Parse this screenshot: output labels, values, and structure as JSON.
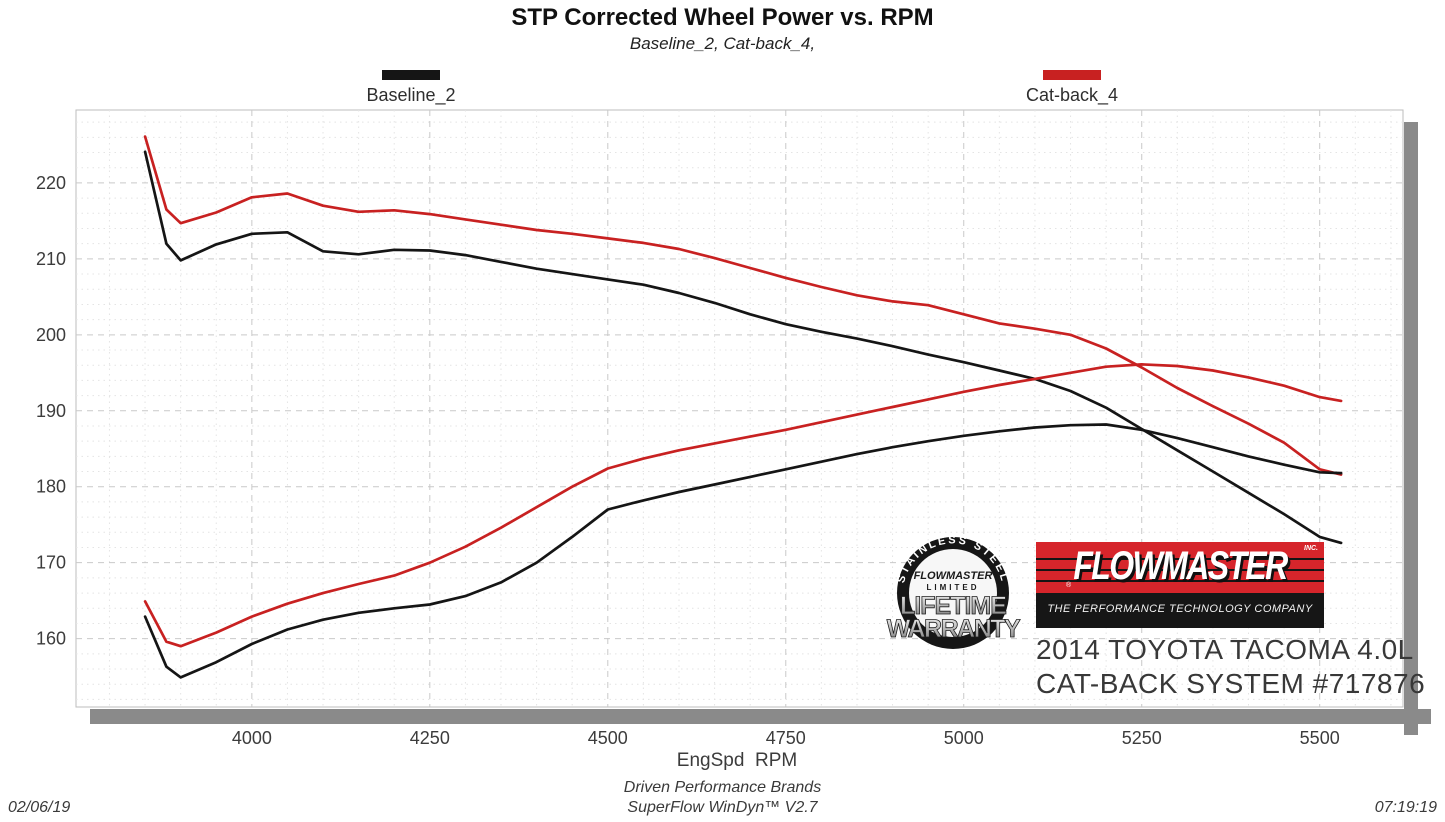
{
  "title": "STP Corrected Wheel Power vs. RPM",
  "subtitle": "Baseline_2, Cat-back_4,",
  "legend": [
    {
      "label": "Baseline_2",
      "color": "#151515"
    },
    {
      "label": "Cat-back_4",
      "color": "#c82121"
    }
  ],
  "xaxis_label": "EngSpd  RPM",
  "footer": {
    "date": "02/06/19",
    "time": "07:19:19",
    "line1": "Driven Performance Brands",
    "line2": "SuperFlow WinDyn™ V2.7"
  },
  "branding": {
    "badge_arc": "STAINLESS STEEL",
    "badge_brand": "FLOWMASTER",
    "badge_limited": "LIMITED",
    "badge_big1": "LIFETIME",
    "badge_big2": "WARRANTY",
    "logo_brand": "FLOWMASTER",
    "logo_inc": "INC.",
    "logo_reg": "®",
    "logo_tagline": "THE PERFORMANCE TECHNOLOGY COMPANY",
    "logo_red": "#d6252b",
    "vehicle_line1": "2014 TOYOTA TACOMA 4.0L",
    "vehicle_line2": "CAT-BACK SYSTEM #717876"
  },
  "chart_data": {
    "type": "line",
    "title": "STP Corrected Wheel Power vs. RPM",
    "xlabel": "EngSpd  RPM",
    "ylabel": "",
    "grid": true,
    "legend_position": "top",
    "xlim": [
      3753,
      5617
    ],
    "ylim": [
      151,
      229.6
    ],
    "x_ticks": [
      4000,
      4250,
      4500,
      4750,
      5000,
      5250,
      5500
    ],
    "y_ticks": [
      160,
      170,
      180,
      190,
      200,
      210,
      220
    ],
    "minor_x_step": 50,
    "minor_y_step": 2,
    "x": [
      3850,
      3880,
      3900,
      3950,
      4000,
      4050,
      4100,
      4150,
      4200,
      4250,
      4300,
      4350,
      4400,
      4450,
      4500,
      4550,
      4600,
      4650,
      4700,
      4750,
      4800,
      4850,
      4900,
      4950,
      5000,
      5050,
      5100,
      5150,
      5200,
      5250,
      5300,
      5350,
      5400,
      5450,
      5500,
      5530
    ],
    "series": [
      {
        "name": "Baseline_2 upper curve",
        "color": "#151515",
        "values": [
          224.1,
          212.0,
          209.8,
          211.9,
          213.3,
          213.5,
          211.0,
          210.6,
          211.2,
          211.1,
          210.5,
          209.6,
          208.7,
          208.0,
          207.3,
          206.6,
          205.5,
          204.2,
          202.7,
          201.4,
          200.4,
          199.5,
          198.5,
          197.4,
          196.4,
          195.3,
          194.2,
          192.6,
          190.4,
          187.6,
          184.8,
          182.0,
          179.2,
          176.4,
          173.4,
          172.6
        ]
      },
      {
        "name": "Cat-back_4 upper curve",
        "color": "#c82121",
        "values": [
          226.1,
          216.5,
          214.7,
          216.1,
          218.1,
          218.6,
          217.0,
          216.2,
          216.4,
          215.9,
          215.2,
          214.5,
          213.8,
          213.3,
          212.7,
          212.1,
          211.3,
          210.1,
          208.8,
          207.5,
          206.3,
          205.2,
          204.4,
          203.9,
          202.7,
          201.5,
          200.8,
          200.0,
          198.2,
          195.7,
          193.0,
          190.6,
          188.3,
          185.8,
          182.3,
          181.6
        ]
      },
      {
        "name": "Baseline_2 lower curve",
        "color": "#151515",
        "values": [
          162.9,
          156.3,
          154.9,
          156.9,
          159.3,
          161.2,
          162.5,
          163.4,
          164.0,
          164.5,
          165.6,
          167.4,
          170.0,
          173.4,
          177.0,
          178.2,
          179.3,
          180.3,
          181.3,
          182.3,
          183.3,
          184.3,
          185.2,
          186.0,
          186.7,
          187.3,
          187.8,
          188.1,
          188.2,
          187.5,
          186.4,
          185.2,
          184.0,
          182.9,
          181.9,
          181.8
        ]
      },
      {
        "name": "Cat-back_4 lower curve",
        "color": "#c82121",
        "values": [
          164.9,
          159.6,
          159.0,
          160.8,
          162.9,
          164.6,
          166.0,
          167.2,
          168.3,
          170.0,
          172.1,
          174.6,
          177.3,
          180.0,
          182.4,
          183.7,
          184.8,
          185.7,
          186.6,
          187.5,
          188.5,
          189.5,
          190.5,
          191.5,
          192.5,
          193.4,
          194.2,
          195.0,
          195.8,
          196.1,
          195.9,
          195.3,
          194.4,
          193.3,
          191.8,
          191.3
        ]
      }
    ]
  }
}
